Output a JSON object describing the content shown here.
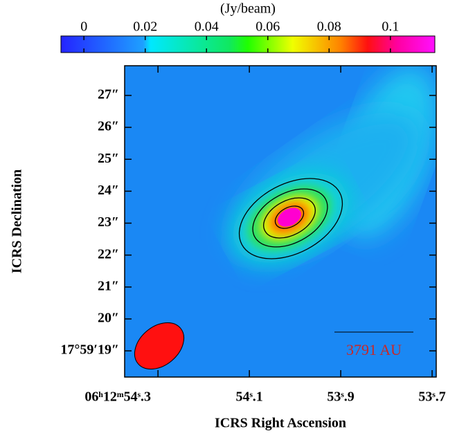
{
  "chart_data": {
    "type": "image",
    "colorbar": {
      "label": "(Jy/beam)",
      "lim": [
        -0.0075,
        0.1145
      ],
      "ticks": [
        0,
        0.02,
        0.04,
        0.06,
        0.08,
        0.1
      ]
    },
    "xlabel": "ICRS Right Ascension",
    "ylabel": "ICRS Declination",
    "xlim": [
      54.373,
      53.691
    ],
    "xticks": [
      {
        "value": 54.3,
        "label": "06ʰ12ᵐ54ˢ.3"
      },
      {
        "value": 54.1,
        "label": "54ˢ.1"
      },
      {
        "value": 53.9,
        "label": "53ˢ.9"
      },
      {
        "value": 53.7,
        "label": "53ˢ.7"
      }
    ],
    "ylim": [
      18.18,
      27.93
    ],
    "yticks": [
      {
        "value": 19,
        "label": "17°59′19″"
      },
      {
        "value": 20,
        "label": "20″"
      },
      {
        "value": 21,
        "label": "21″"
      },
      {
        "value": 22,
        "label": "22″"
      },
      {
        "value": 23,
        "label": "23″"
      },
      {
        "value": 24,
        "label": "24″"
      },
      {
        "value": 25,
        "label": "25″"
      },
      {
        "value": 26,
        "label": "26″"
      },
      {
        "value": 27,
        "label": "27″"
      }
    ],
    "scalebar_label": "3791 AU"
  }
}
